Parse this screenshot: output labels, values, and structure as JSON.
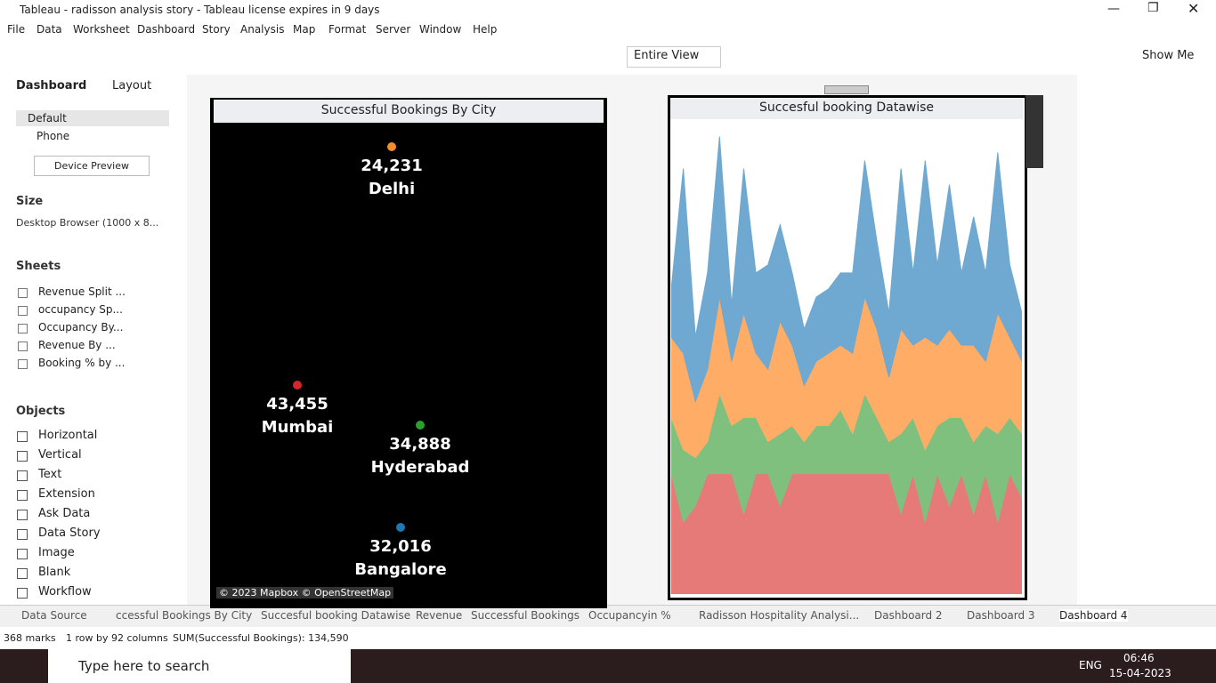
{
  "window": {
    "title": "Tableau - radisson analysis story - Tableau license expires in 9 days"
  },
  "menu": [
    "File",
    "Data",
    "Worksheet",
    "Dashboard",
    "Story",
    "Analysis",
    "Map",
    "Format",
    "Server",
    "Window",
    "Help"
  ],
  "toolbar": {
    "fit": "Entire View",
    "show_me": "Show Me"
  },
  "side_panel": {
    "tabs": [
      "Dashboard",
      "Layout"
    ],
    "devices": [
      "Default",
      "Phone"
    ],
    "device_preview": "Device Preview",
    "size_heading": "Size",
    "size_value": "Desktop Browser (1000 x 8...",
    "sheets_heading": "Sheets",
    "sheets": [
      "Revenue Split ...",
      "occupancy Sp...",
      "Occupancy By...",
      "Revenue By ...",
      "Booking % by ..."
    ],
    "objects_heading": "Objects",
    "objects": [
      "Horizontal",
      "Vertical",
      "Text",
      "Extension",
      "Ask Data",
      "Data Story",
      "Image",
      "Blank",
      "Workflow"
    ]
  },
  "map": {
    "title": "Successful Bookings By City",
    "attribution": "© 2023 Mapbox © OpenStreetMap",
    "cities": [
      {
        "name": "Delhi",
        "value": 24231,
        "value_label": "24,231",
        "color": "#f28e2b"
      },
      {
        "name": "Mumbai",
        "value": 43455,
        "value_label": "43,455",
        "color": "#d62728"
      },
      {
        "name": "Hyderabad",
        "value": 34888,
        "value_label": "34,888",
        "color": "#2ca02c"
      },
      {
        "name": "Bangalore",
        "value": 32016,
        "value_label": "32,016",
        "color": "#1f77b4"
      }
    ]
  },
  "chart_data": {
    "type": "area",
    "title": "Succesful booking Datawise",
    "series": [
      {
        "color": "#e67a78",
        "values": [
          150,
          90,
          110,
          150,
          150,
          150,
          100,
          150,
          150,
          110,
          150,
          150,
          150,
          150,
          150,
          150,
          150,
          150,
          150,
          100,
          150,
          90,
          150,
          110,
          150,
          100,
          150,
          90,
          150,
          120
        ]
      },
      {
        "color": "#7fc07f",
        "values": [
          70,
          90,
          60,
          40,
          100,
          60,
          120,
          70,
          40,
          90,
          60,
          40,
          60,
          60,
          80,
          50,
          100,
          70,
          40,
          100,
          70,
          90,
          60,
          110,
          70,
          90,
          60,
          110,
          70,
          80
        ]
      },
      {
        "color": "#ffad66",
        "values": [
          100,
          120,
          70,
          90,
          120,
          80,
          130,
          80,
          90,
          140,
          100,
          70,
          80,
          90,
          80,
          100,
          120,
          110,
          80,
          130,
          90,
          140,
          100,
          110,
          90,
          120,
          80,
          150,
          100,
          90
        ]
      },
      {
        "color": "#6fa8d0",
        "values": [
          60,
          230,
          80,
          120,
          200,
          70,
          180,
          100,
          130,
          120,
          90,
          70,
          80,
          80,
          90,
          100,
          170,
          110,
          80,
          200,
          90,
          220,
          100,
          180,
          90,
          160,
          110,
          200,
          90,
          60
        ]
      }
    ]
  },
  "sheet_tabs": [
    "Data Source",
    "ccessful Bookings By City",
    "Succesful booking Datawise",
    "Revenue",
    "Successful Bookings",
    "Occupancyin %",
    "Radisson Hospitality Analysi...",
    "Dashboard 2",
    "Dashboard 3",
    "Dashboard 4"
  ],
  "status": [
    "368 marks",
    "1 row by 92 columns",
    "SUM(Successful Bookings): 134,590"
  ],
  "taskbar": {
    "search": "Type here to search",
    "language": "ENG",
    "time": "06:46",
    "date": "15-04-2023"
  }
}
